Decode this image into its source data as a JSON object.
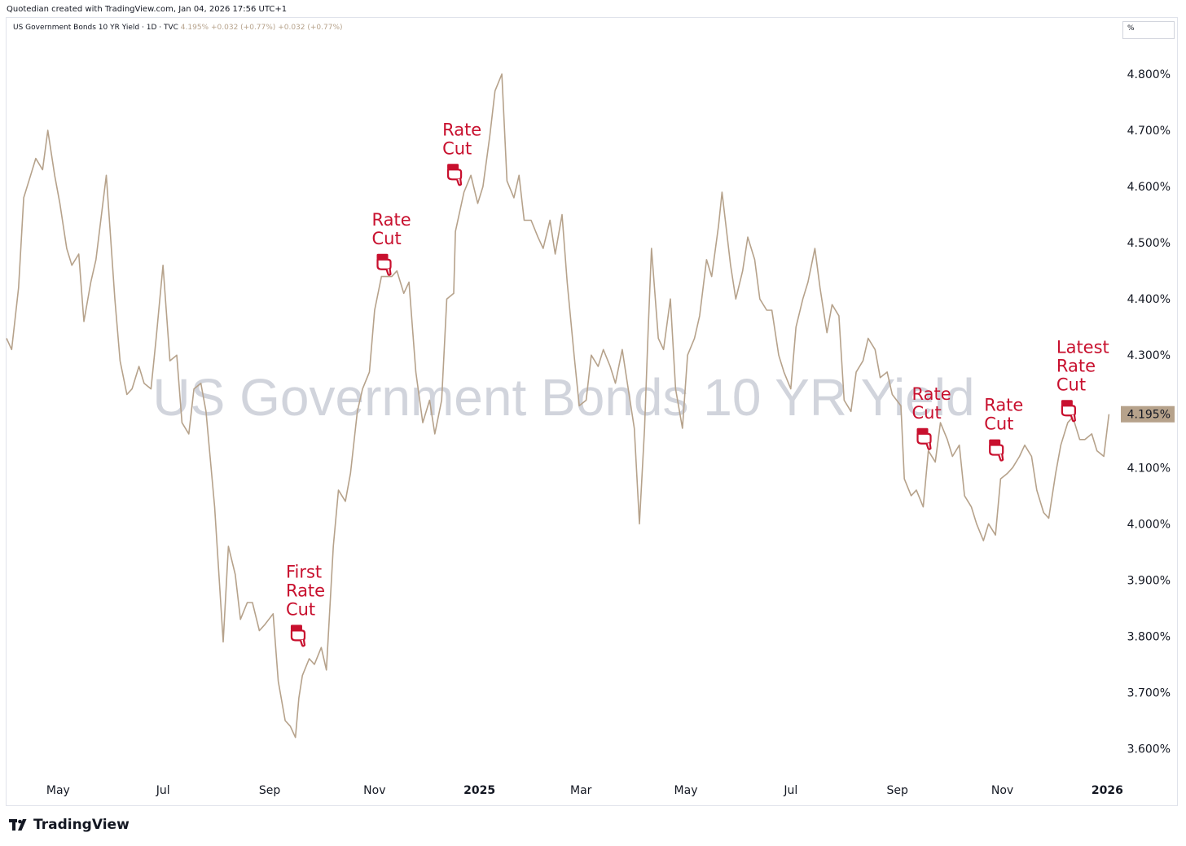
{
  "header": {
    "attribution": "Quotedian created with TradingView.com, Jan 04, 2026 17:56 UTC+1"
  },
  "legend": {
    "symbol": "US Government Bonds 10 YR Yield · 1D · TVC",
    "price": "4.195%",
    "change": "+0.032 (+0.77%)",
    "change2": "+0.032 (+0.77%)"
  },
  "unit_label": "%",
  "watermark": "US Government Bonds 10 YR Yield",
  "brand": {
    "name": "TradingView",
    "icon": "tradingview-logo-icon"
  },
  "colors": {
    "line": "#b6a28b",
    "annotation": "#c8102e",
    "price_tag": "#b6a28b",
    "watermark": "#d1d4dc"
  },
  "chart_data": {
    "type": "line",
    "title": "",
    "ylim": [
      3.55,
      4.9
    ],
    "xlim": [
      "2024-04-01",
      "2026-01-07"
    ],
    "y_ticks": [
      3.6,
      3.7,
      3.8,
      3.9,
      4.0,
      4.1,
      4.2,
      4.3,
      4.4,
      4.5,
      4.6,
      4.7,
      4.8
    ],
    "y_tick_labels": [
      "3.600%",
      "3.700%",
      "3.800%",
      "3.900%",
      "4.000%",
      "4.100%",
      "4.200%",
      "4.300%",
      "4.400%",
      "4.500%",
      "4.600%",
      "4.700%",
      "4.800%"
    ],
    "x_ticks": [
      {
        "date": "2024-05-01",
        "label": "May",
        "bold": false
      },
      {
        "date": "2024-07-01",
        "label": "Jul",
        "bold": false
      },
      {
        "date": "2024-09-01",
        "label": "Sep",
        "bold": false
      },
      {
        "date": "2024-11-01",
        "label": "Nov",
        "bold": false
      },
      {
        "date": "2025-01-01",
        "label": "2025",
        "bold": true
      },
      {
        "date": "2025-03-01",
        "label": "Mar",
        "bold": false
      },
      {
        "date": "2025-05-01",
        "label": "May",
        "bold": false
      },
      {
        "date": "2025-07-01",
        "label": "Jul",
        "bold": false
      },
      {
        "date": "2025-09-01",
        "label": "Sep",
        "bold": false
      },
      {
        "date": "2025-11-01",
        "label": "Nov",
        "bold": false
      },
      {
        "date": "2026-01-01",
        "label": "2026",
        "bold": true
      }
    ],
    "grid": false,
    "last_value": 4.195,
    "last_value_label": "4.195%",
    "series": [
      {
        "name": "US Government Bonds 10 YR Yield",
        "points": [
          [
            "2024-04-01",
            4.33
          ],
          [
            "2024-04-04",
            4.31
          ],
          [
            "2024-04-08",
            4.42
          ],
          [
            "2024-04-11",
            4.58
          ],
          [
            "2024-04-15",
            4.62
          ],
          [
            "2024-04-18",
            4.65
          ],
          [
            "2024-04-22",
            4.63
          ],
          [
            "2024-04-25",
            4.7
          ],
          [
            "2024-04-29",
            4.62
          ],
          [
            "2024-05-02",
            4.57
          ],
          [
            "2024-05-06",
            4.49
          ],
          [
            "2024-05-09",
            4.46
          ],
          [
            "2024-05-13",
            4.48
          ],
          [
            "2024-05-16",
            4.36
          ],
          [
            "2024-05-20",
            4.43
          ],
          [
            "2024-05-23",
            4.47
          ],
          [
            "2024-05-29",
            4.62
          ],
          [
            "2024-06-03",
            4.4
          ],
          [
            "2024-06-06",
            4.29
          ],
          [
            "2024-06-10",
            4.23
          ],
          [
            "2024-06-13",
            4.24
          ],
          [
            "2024-06-17",
            4.28
          ],
          [
            "2024-06-20",
            4.25
          ],
          [
            "2024-06-24",
            4.24
          ],
          [
            "2024-06-27",
            4.33
          ],
          [
            "2024-07-01",
            4.46
          ],
          [
            "2024-07-05",
            4.29
          ],
          [
            "2024-07-09",
            4.3
          ],
          [
            "2024-07-12",
            4.18
          ],
          [
            "2024-07-16",
            4.16
          ],
          [
            "2024-07-19",
            4.24
          ],
          [
            "2024-07-23",
            4.25
          ],
          [
            "2024-07-26",
            4.2
          ],
          [
            "2024-07-31",
            4.03
          ],
          [
            "2024-08-05",
            3.79
          ],
          [
            "2024-08-08",
            3.96
          ],
          [
            "2024-08-12",
            3.91
          ],
          [
            "2024-08-15",
            3.83
          ],
          [
            "2024-08-19",
            3.86
          ],
          [
            "2024-08-22",
            3.86
          ],
          [
            "2024-08-26",
            3.81
          ],
          [
            "2024-08-29",
            3.82
          ],
          [
            "2024-09-03",
            3.84
          ],
          [
            "2024-09-06",
            3.72
          ],
          [
            "2024-09-10",
            3.65
          ],
          [
            "2024-09-13",
            3.64
          ],
          [
            "2024-09-16",
            3.62
          ],
          [
            "2024-09-18",
            3.69
          ],
          [
            "2024-09-20",
            3.73
          ],
          [
            "2024-09-24",
            3.76
          ],
          [
            "2024-09-27",
            3.75
          ],
          [
            "2024-10-01",
            3.78
          ],
          [
            "2024-10-04",
            3.74
          ],
          [
            "2024-10-08",
            3.96
          ],
          [
            "2024-10-11",
            4.06
          ],
          [
            "2024-10-15",
            4.04
          ],
          [
            "2024-10-18",
            4.09
          ],
          [
            "2024-10-22",
            4.2
          ],
          [
            "2024-10-25",
            4.24
          ],
          [
            "2024-10-29",
            4.27
          ],
          [
            "2024-11-01",
            4.38
          ],
          [
            "2024-11-05",
            4.44
          ],
          [
            "2024-11-08",
            4.44
          ],
          [
            "2024-11-11",
            4.44
          ],
          [
            "2024-11-14",
            4.45
          ],
          [
            "2024-11-18",
            4.41
          ],
          [
            "2024-11-21",
            4.43
          ],
          [
            "2024-11-25",
            4.27
          ],
          [
            "2024-11-29",
            4.18
          ],
          [
            "2024-12-03",
            4.22
          ],
          [
            "2024-12-06",
            4.16
          ],
          [
            "2024-12-10",
            4.22
          ],
          [
            "2024-12-13",
            4.4
          ],
          [
            "2024-12-17",
            4.41
          ],
          [
            "2024-12-18",
            4.52
          ],
          [
            "2024-12-23",
            4.59
          ],
          [
            "2024-12-27",
            4.62
          ],
          [
            "2024-12-31",
            4.57
          ],
          [
            "2025-01-03",
            4.6
          ],
          [
            "2025-01-07",
            4.69
          ],
          [
            "2025-01-10",
            4.77
          ],
          [
            "2025-01-14",
            4.8
          ],
          [
            "2025-01-17",
            4.61
          ],
          [
            "2025-01-21",
            4.58
          ],
          [
            "2025-01-24",
            4.62
          ],
          [
            "2025-01-27",
            4.54
          ],
          [
            "2025-01-31",
            4.54
          ],
          [
            "2025-02-04",
            4.51
          ],
          [
            "2025-02-07",
            4.49
          ],
          [
            "2025-02-11",
            4.54
          ],
          [
            "2025-02-14",
            4.48
          ],
          [
            "2025-02-18",
            4.55
          ],
          [
            "2025-02-21",
            4.43
          ],
          [
            "2025-02-25",
            4.3
          ],
          [
            "2025-02-28",
            4.21
          ],
          [
            "2025-03-04",
            4.22
          ],
          [
            "2025-03-07",
            4.3
          ],
          [
            "2025-03-11",
            4.28
          ],
          [
            "2025-03-14",
            4.31
          ],
          [
            "2025-03-18",
            4.28
          ],
          [
            "2025-03-21",
            4.25
          ],
          [
            "2025-03-25",
            4.31
          ],
          [
            "2025-03-28",
            4.25
          ],
          [
            "2025-04-01",
            4.17
          ],
          [
            "2025-04-04",
            4.0
          ],
          [
            "2025-04-07",
            4.17
          ],
          [
            "2025-04-09",
            4.34
          ],
          [
            "2025-04-11",
            4.49
          ],
          [
            "2025-04-15",
            4.33
          ],
          [
            "2025-04-18",
            4.31
          ],
          [
            "2025-04-22",
            4.4
          ],
          [
            "2025-04-25",
            4.24
          ],
          [
            "2025-04-29",
            4.17
          ],
          [
            "2025-05-02",
            4.3
          ],
          [
            "2025-05-06",
            4.33
          ],
          [
            "2025-05-09",
            4.37
          ],
          [
            "2025-05-13",
            4.47
          ],
          [
            "2025-05-16",
            4.44
          ],
          [
            "2025-05-20",
            4.53
          ],
          [
            "2025-05-22",
            4.59
          ],
          [
            "2025-05-27",
            4.46
          ],
          [
            "2025-05-30",
            4.4
          ],
          [
            "2025-06-03",
            4.45
          ],
          [
            "2025-06-06",
            4.51
          ],
          [
            "2025-06-10",
            4.47
          ],
          [
            "2025-06-13",
            4.4
          ],
          [
            "2025-06-17",
            4.38
          ],
          [
            "2025-06-20",
            4.38
          ],
          [
            "2025-06-24",
            4.3
          ],
          [
            "2025-06-27",
            4.27
          ],
          [
            "2025-07-01",
            4.24
          ],
          [
            "2025-07-04",
            4.35
          ],
          [
            "2025-07-08",
            4.4
          ],
          [
            "2025-07-11",
            4.43
          ],
          [
            "2025-07-15",
            4.49
          ],
          [
            "2025-07-18",
            4.42
          ],
          [
            "2025-07-22",
            4.34
          ],
          [
            "2025-07-25",
            4.39
          ],
          [
            "2025-07-29",
            4.37
          ],
          [
            "2025-08-01",
            4.22
          ],
          [
            "2025-08-05",
            4.2
          ],
          [
            "2025-08-08",
            4.27
          ],
          [
            "2025-08-12",
            4.29
          ],
          [
            "2025-08-15",
            4.33
          ],
          [
            "2025-08-19",
            4.31
          ],
          [
            "2025-08-22",
            4.26
          ],
          [
            "2025-08-26",
            4.27
          ],
          [
            "2025-08-29",
            4.23
          ],
          [
            "2025-09-03",
            4.21
          ],
          [
            "2025-09-05",
            4.08
          ],
          [
            "2025-09-09",
            4.05
          ],
          [
            "2025-09-12",
            4.06
          ],
          [
            "2025-09-16",
            4.03
          ],
          [
            "2025-09-19",
            4.13
          ],
          [
            "2025-09-23",
            4.11
          ],
          [
            "2025-09-26",
            4.18
          ],
          [
            "2025-09-30",
            4.15
          ],
          [
            "2025-10-03",
            4.12
          ],
          [
            "2025-10-07",
            4.14
          ],
          [
            "2025-10-10",
            4.05
          ],
          [
            "2025-10-14",
            4.03
          ],
          [
            "2025-10-17",
            4.0
          ],
          [
            "2025-10-21",
            3.97
          ],
          [
            "2025-10-24",
            4.0
          ],
          [
            "2025-10-28",
            3.98
          ],
          [
            "2025-10-31",
            4.08
          ],
          [
            "2025-11-04",
            4.09
          ],
          [
            "2025-11-07",
            4.1
          ],
          [
            "2025-11-11",
            4.12
          ],
          [
            "2025-11-14",
            4.14
          ],
          [
            "2025-11-18",
            4.12
          ],
          [
            "2025-11-21",
            4.06
          ],
          [
            "2025-11-25",
            4.02
          ],
          [
            "2025-11-28",
            4.01
          ],
          [
            "2025-12-02",
            4.09
          ],
          [
            "2025-12-05",
            4.14
          ],
          [
            "2025-12-09",
            4.18
          ],
          [
            "2025-12-12",
            4.19
          ],
          [
            "2025-12-16",
            4.15
          ],
          [
            "2025-12-19",
            4.15
          ],
          [
            "2025-12-23",
            4.16
          ],
          [
            "2025-12-26",
            4.13
          ],
          [
            "2025-12-30",
            4.12
          ],
          [
            "2026-01-02",
            4.195
          ]
        ]
      }
    ],
    "annotations": [
      {
        "date": "2024-09-18",
        "value": 3.8,
        "lines": [
          "First",
          "Rate",
          "Cut"
        ]
      },
      {
        "date": "2024-11-07",
        "value": 4.46,
        "lines": [
          "Rate",
          "Cut"
        ]
      },
      {
        "date": "2024-12-18",
        "value": 4.62,
        "lines": [
          "Rate",
          "Cut"
        ]
      },
      {
        "date": "2025-09-17",
        "value": 4.15,
        "lines": [
          "Rate",
          "Cut"
        ]
      },
      {
        "date": "2025-10-29",
        "value": 4.13,
        "lines": [
          "Rate",
          "Cut"
        ]
      },
      {
        "date": "2025-12-10",
        "value": 4.2,
        "lines": [
          "Latest",
          "Rate",
          "Cut"
        ]
      }
    ]
  }
}
